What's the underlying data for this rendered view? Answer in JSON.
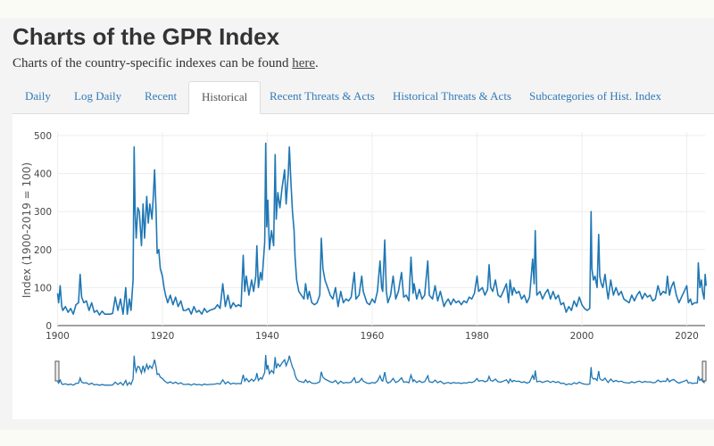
{
  "page": {
    "title": "Charts of the GPR Index",
    "subtitle_text": "Charts of the country-specific indexes can be found ",
    "subtitle_link": "here",
    "subtitle_end": "."
  },
  "tabs": [
    {
      "label": "Daily",
      "active": false
    },
    {
      "label": "Log Daily",
      "active": false
    },
    {
      "label": "Recent",
      "active": false
    },
    {
      "label": "Historical",
      "active": true
    },
    {
      "label": "Recent Threats & Acts",
      "active": false
    },
    {
      "label": "Historical Threats & Acts",
      "active": false
    },
    {
      "label": "Subcategories of Hist. Index",
      "active": false
    }
  ],
  "chart_data": {
    "type": "line",
    "title": "",
    "xlabel": "",
    "ylabel": "Index (1900-2019 = 100)",
    "xlim": [
      1900,
      2023.7
    ],
    "ylim": [
      0,
      500
    ],
    "x_ticks": [
      "1900",
      "1920",
      "1940",
      "1960",
      "1980",
      "2000",
      "2020"
    ],
    "y_ticks": [
      "0",
      "100",
      "200",
      "300",
      "400",
      "500"
    ],
    "grid": true,
    "legend": "none",
    "range_slider": true,
    "color": "#1f77b4",
    "points": [
      [
        1900,
        85
      ],
      [
        1900.2,
        60
      ],
      [
        1900.5,
        105
      ],
      [
        1900.8,
        50
      ],
      [
        1901,
        40
      ],
      [
        1901.5,
        50
      ],
      [
        1902,
        35
      ],
      [
        1902.5,
        45
      ],
      [
        1903,
        30
      ],
      [
        1903.5,
        55
      ],
      [
        1904,
        60
      ],
      [
        1904.3,
        135
      ],
      [
        1904.6,
        75
      ],
      [
        1905,
        60
      ],
      [
        1905.5,
        65
      ],
      [
        1906,
        40
      ],
      [
        1906.5,
        60
      ],
      [
        1907,
        35
      ],
      [
        1907.5,
        40
      ],
      [
        1908,
        28
      ],
      [
        1908.5,
        38
      ],
      [
        1909,
        30
      ],
      [
        1910,
        30
      ],
      [
        1910.5,
        32
      ],
      [
        1911,
        75
      ],
      [
        1911.5,
        40
      ],
      [
        1912,
        70
      ],
      [
        1912.5,
        30
      ],
      [
        1913,
        100
      ],
      [
        1913.3,
        30
      ],
      [
        1913.7,
        70
      ],
      [
        1914,
        40
      ],
      [
        1914.4,
        120
      ],
      [
        1914.6,
        470
      ],
      [
        1914.8,
        300
      ],
      [
        1915,
        230
      ],
      [
        1915.3,
        310
      ],
      [
        1915.6,
        300
      ],
      [
        1916,
        210
      ],
      [
        1916.3,
        320
      ],
      [
        1916.6,
        230
      ],
      [
        1917,
        340
      ],
      [
        1917.3,
        270
      ],
      [
        1917.6,
        320
      ],
      [
        1918,
        280
      ],
      [
        1918.3,
        350
      ],
      [
        1918.5,
        410
      ],
      [
        1918.8,
        300
      ],
      [
        1919,
        190
      ],
      [
        1919.3,
        200
      ],
      [
        1919.6,
        150
      ],
      [
        1920,
        130
      ],
      [
        1920.3,
        100
      ],
      [
        1920.6,
        80
      ],
      [
        1921,
        60
      ],
      [
        1921.5,
        80
      ],
      [
        1922,
        55
      ],
      [
        1922.5,
        75
      ],
      [
        1923,
        50
      ],
      [
        1923.5,
        65
      ],
      [
        1924,
        40
      ],
      [
        1924.5,
        40
      ],
      [
        1925,
        45
      ],
      [
        1925.5,
        30
      ],
      [
        1926,
        50
      ],
      [
        1926.5,
        35
      ],
      [
        1927,
        40
      ],
      [
        1927.5,
        30
      ],
      [
        1928,
        45
      ],
      [
        1928.5,
        35
      ],
      [
        1929,
        40
      ],
      [
        1930,
        45
      ],
      [
        1930.5,
        55
      ],
      [
        1931,
        45
      ],
      [
        1931.5,
        110
      ],
      [
        1932,
        50
      ],
      [
        1932.5,
        80
      ],
      [
        1933,
        45
      ],
      [
        1933.5,
        60
      ],
      [
        1934,
        50
      ],
      [
        1934.5,
        55
      ],
      [
        1935,
        50
      ],
      [
        1935.4,
        185
      ],
      [
        1935.7,
        90
      ],
      [
        1936,
        130
      ],
      [
        1936.5,
        80
      ],
      [
        1937,
        120
      ],
      [
        1937.4,
        90
      ],
      [
        1937.8,
        130
      ],
      [
        1938,
        210
      ],
      [
        1938.3,
        100
      ],
      [
        1938.7,
        140
      ],
      [
        1939,
        120
      ],
      [
        1939.5,
        220
      ],
      [
        1939.7,
        480
      ],
      [
        1939.9,
        260
      ],
      [
        1940.1,
        330
      ],
      [
        1940.4,
        200
      ],
      [
        1940.8,
        250
      ],
      [
        1941.2,
        210
      ],
      [
        1941.5,
        450
      ],
      [
        1941.7,
        280
      ],
      [
        1942,
        350
      ],
      [
        1942.4,
        310
      ],
      [
        1942.8,
        360
      ],
      [
        1943.3,
        410
      ],
      [
        1943.6,
        320
      ],
      [
        1944,
        400
      ],
      [
        1944.2,
        470
      ],
      [
        1944.5,
        380
      ],
      [
        1944.8,
        300
      ],
      [
        1945.1,
        250
      ],
      [
        1945.3,
        180
      ],
      [
        1945.6,
        120
      ],
      [
        1946,
        90
      ],
      [
        1946.5,
        80
      ],
      [
        1947,
        70
      ],
      [
        1947.3,
        110
      ],
      [
        1947.7,
        70
      ],
      [
        1948,
        90
      ],
      [
        1948.5,
        60
      ],
      [
        1949,
        55
      ],
      [
        1949.5,
        60
      ],
      [
        1950,
        80
      ],
      [
        1950.3,
        230
      ],
      [
        1950.6,
        150
      ],
      [
        1951,
        120
      ],
      [
        1951.5,
        100
      ],
      [
        1952,
        80
      ],
      [
        1952.5,
        70
      ],
      [
        1953,
        100
      ],
      [
        1953.5,
        50
      ],
      [
        1954,
        90
      ],
      [
        1954.5,
        60
      ],
      [
        1955,
        70
      ],
      [
        1955.5,
        65
      ],
      [
        1956,
        75
      ],
      [
        1956.6,
        140
      ],
      [
        1956.9,
        70
      ],
      [
        1957.5,
        80
      ],
      [
        1958,
        130
      ],
      [
        1958.3,
        90
      ],
      [
        1959,
        60
      ],
      [
        1959.5,
        55
      ],
      [
        1960,
        70
      ],
      [
        1960.5,
        60
      ],
      [
        1961,
        90
      ],
      [
        1961.5,
        170
      ],
      [
        1961.8,
        100
      ],
      [
        1962,
        90
      ],
      [
        1962.4,
        225
      ],
      [
        1962.7,
        90
      ],
      [
        1963,
        60
      ],
      [
        1963.5,
        80
      ],
      [
        1964,
        130
      ],
      [
        1964.5,
        70
      ],
      [
        1965,
        90
      ],
      [
        1965.6,
        140
      ],
      [
        1966,
        75
      ],
      [
        1966.5,
        80
      ],
      [
        1967,
        65
      ],
      [
        1967.4,
        180
      ],
      [
        1967.8,
        85
      ],
      [
        1968,
        110
      ],
      [
        1968.5,
        70
      ],
      [
        1969,
        95
      ],
      [
        1969.5,
        70
      ],
      [
        1970,
        80
      ],
      [
        1970.6,
        170
      ],
      [
        1970.9,
        80
      ],
      [
        1971.5,
        70
      ],
      [
        1972,
        105
      ],
      [
        1972.5,
        65
      ],
      [
        1973,
        90
      ],
      [
        1973.7,
        50
      ],
      [
        1974,
        60
      ],
      [
        1974.5,
        70
      ],
      [
        1975,
        55
      ],
      [
        1975.5,
        70
      ],
      [
        1976,
        60
      ],
      [
        1976.5,
        65
      ],
      [
        1977,
        55
      ],
      [
        1977.5,
        65
      ],
      [
        1978,
        60
      ],
      [
        1978.5,
        75
      ],
      [
        1979,
        70
      ],
      [
        1979.5,
        85
      ],
      [
        1980,
        130
      ],
      [
        1980.3,
        90
      ],
      [
        1981,
        100
      ],
      [
        1981.5,
        80
      ],
      [
        1982,
        95
      ],
      [
        1982.3,
        160
      ],
      [
        1982.6,
        100
      ],
      [
        1983,
        90
      ],
      [
        1983.5,
        120
      ],
      [
        1984,
        80
      ],
      [
        1984.5,
        75
      ],
      [
        1985,
        90
      ],
      [
        1985.6,
        110
      ],
      [
        1986,
        60
      ],
      [
        1986.3,
        120
      ],
      [
        1986.7,
        80
      ],
      [
        1987,
        100
      ],
      [
        1987.5,
        85
      ],
      [
        1988,
        90
      ],
      [
        1988.5,
        70
      ],
      [
        1989,
        80
      ],
      [
        1989.5,
        60
      ],
      [
        1990,
        75
      ],
      [
        1990.6,
        175
      ],
      [
        1990.9,
        110
      ],
      [
        1991.1,
        250
      ],
      [
        1991.4,
        80
      ],
      [
        1992,
        90
      ],
      [
        1992.5,
        70
      ],
      [
        1993,
        85
      ],
      [
        1993.5,
        95
      ],
      [
        1994,
        70
      ],
      [
        1994.5,
        90
      ],
      [
        1995,
        70
      ],
      [
        1995.5,
        80
      ],
      [
        1996,
        55
      ],
      [
        1996.5,
        60
      ],
      [
        1997,
        35
      ],
      [
        1997.5,
        50
      ],
      [
        1998,
        40
      ],
      [
        1998.5,
        65
      ],
      [
        1999,
        50
      ],
      [
        1999.5,
        75
      ],
      [
        2000,
        55
      ],
      [
        2000.5,
        45
      ],
      [
        2001,
        40
      ],
      [
        2001.5,
        45
      ],
      [
        2001.75,
        300
      ],
      [
        2001.9,
        150
      ],
      [
        2002.2,
        120
      ],
      [
        2002.5,
        130
      ],
      [
        2002.9,
        100
      ],
      [
        2003.2,
        240
      ],
      [
        2003.4,
        130
      ],
      [
        2003.7,
        110
      ],
      [
        2004,
        100
      ],
      [
        2004.4,
        135
      ],
      [
        2004.8,
        90
      ],
      [
        2005,
        70
      ],
      [
        2005.5,
        120
      ],
      [
        2006,
        80
      ],
      [
        2006.5,
        100
      ],
      [
        2007,
        80
      ],
      [
        2007.5,
        90
      ],
      [
        2008,
        70
      ],
      [
        2008.5,
        65
      ],
      [
        2009,
        60
      ],
      [
        2009.5,
        80
      ],
      [
        2010,
        65
      ],
      [
        2010.5,
        80
      ],
      [
        2011,
        90
      ],
      [
        2011.5,
        70
      ],
      [
        2012,
        85
      ],
      [
        2012.5,
        75
      ],
      [
        2013,
        80
      ],
      [
        2013.5,
        65
      ],
      [
        2014,
        70
      ],
      [
        2014.5,
        105
      ],
      [
        2015,
        80
      ],
      [
        2015.5,
        90
      ],
      [
        2016,
        85
      ],
      [
        2016.3,
        130
      ],
      [
        2016.7,
        80
      ],
      [
        2017,
        100
      ],
      [
        2017.5,
        115
      ],
      [
        2018,
        80
      ],
      [
        2018.5,
        60
      ],
      [
        2019,
        75
      ],
      [
        2019.5,
        90
      ],
      [
        2020,
        105
      ],
      [
        2020.3,
        60
      ],
      [
        2020.7,
        70
      ],
      [
        2021,
        55
      ],
      [
        2021.5,
        60
      ],
      [
        2022,
        60
      ],
      [
        2022.2,
        165
      ],
      [
        2022.5,
        100
      ],
      [
        2022.8,
        120
      ],
      [
        2023,
        90
      ],
      [
        2023.3,
        70
      ],
      [
        2023.5,
        135
      ],
      [
        2023.7,
        105
      ]
    ]
  }
}
